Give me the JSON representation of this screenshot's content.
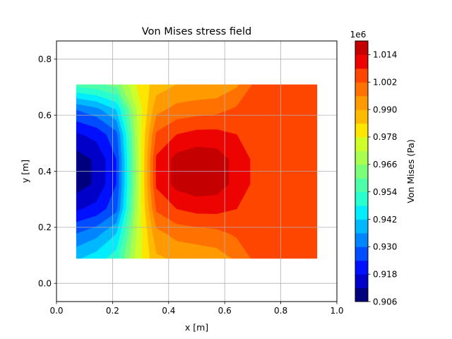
{
  "chart_data": {
    "type": "contour",
    "title": "Von Mises stress field",
    "xlabel": "x [m]",
    "ylabel": "y [m]",
    "xlim": [
      0.0,
      1.0
    ],
    "ylim": [
      -0.065,
      0.865
    ],
    "xticks": [
      "0.0",
      "0.2",
      "0.4",
      "0.6",
      "0.8",
      "1.0"
    ],
    "yticks": [
      "0.0",
      "0.2",
      "0.4",
      "0.6",
      "0.8"
    ],
    "grid": true,
    "colorbar": {
      "label": "Von Mises (Pa)",
      "multiplier": "1e6",
      "range": [
        0.906,
        1.02
      ],
      "ticks": [
        "0.906",
        "0.918",
        "0.930",
        "0.942",
        "0.954",
        "0.966",
        "0.978",
        "0.990",
        "1.002",
        "1.014"
      ]
    },
    "levels": [
      0.906,
      0.912,
      0.918,
      0.924,
      0.93,
      0.936,
      0.942,
      0.948,
      0.954,
      0.96,
      0.966,
      0.972,
      0.978,
      0.984,
      0.99,
      0.996,
      1.002,
      1.008,
      1.014,
      1.02
    ],
    "level_colors": [
      "#00007f",
      "#0000c8",
      "#0010ff",
      "#004cff",
      "#0084ff",
      "#00b8ff",
      "#00ecff",
      "#29ffce",
      "#4dffa9",
      "#7cff79",
      "#a9ff4d",
      "#ceff29",
      "#ffe600",
      "#ffbb00",
      "#ff9a00",
      "#ff7100",
      "#ff4600",
      "#ed0400",
      "#c50000",
      "#7f0000"
    ],
    "grid_x": [
      0.071,
      0.143,
      0.214,
      0.286,
      0.357,
      0.429,
      0.5,
      0.571,
      0.643,
      0.714,
      0.786,
      0.857,
      0.929
    ],
    "grid_y": [
      0.089,
      0.177,
      0.266,
      0.354,
      0.443,
      0.531,
      0.62,
      0.709
    ],
    "values": [
      [
        0.941,
        0.945,
        0.951,
        0.974,
        0.989,
        0.991,
        0.992,
        0.993,
        0.997,
        1.004,
        1.004,
        1.004,
        1.004
      ],
      [
        0.93,
        0.934,
        0.942,
        0.972,
        0.994,
        0.998,
        0.999,
        1.0,
        1.003,
        1.004,
        1.004,
        1.004,
        1.004
      ],
      [
        0.917,
        0.92,
        0.928,
        0.97,
        1.003,
        1.008,
        1.01,
        1.01,
        1.008,
        1.005,
        1.005,
        1.005,
        1.005
      ],
      [
        0.909,
        0.913,
        0.924,
        0.968,
        1.009,
        1.016,
        1.018,
        1.017,
        1.012,
        1.006,
        1.006,
        1.006,
        1.006
      ],
      [
        0.909,
        0.913,
        0.924,
        0.968,
        1.009,
        1.016,
        1.018,
        1.017,
        1.012,
        1.006,
        1.006,
        1.006,
        1.006
      ],
      [
        0.917,
        0.92,
        0.928,
        0.97,
        1.003,
        1.008,
        1.01,
        1.01,
        1.008,
        1.005,
        1.005,
        1.005,
        1.005
      ],
      [
        0.93,
        0.934,
        0.942,
        0.972,
        0.994,
        0.998,
        0.999,
        1.0,
        1.003,
        1.004,
        1.004,
        1.004,
        1.004
      ],
      [
        0.956,
        0.958,
        0.962,
        0.978,
        0.987,
        0.99,
        0.991,
        0.991,
        0.995,
        1.004,
        1.004,
        1.004,
        1.004
      ]
    ]
  }
}
